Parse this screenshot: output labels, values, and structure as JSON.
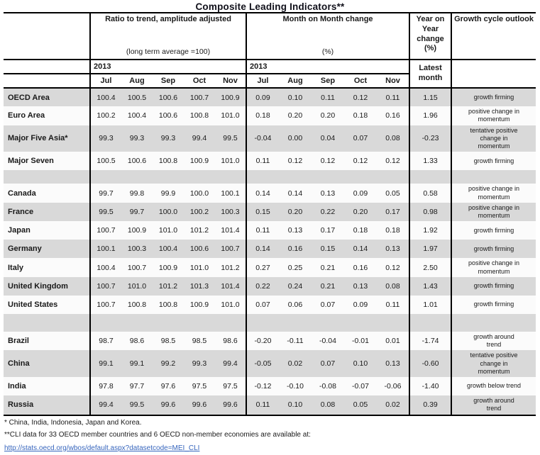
{
  "title": "Composite Leading Indicators**",
  "table": {
    "header": {
      "ratio_title": "Ratio to trend, amplitude adjusted",
      "ratio_subtitle": "(long term average =100)",
      "mom_title": "Month on Month change",
      "mom_subtitle": "(%)",
      "yoy_title": "Year on Year change (%)",
      "outlook_title": "Growth cycle outlook",
      "year_ratio": "2013",
      "year_mom": "2013",
      "latest_label": "Latest month"
    },
    "months": [
      "Jul",
      "Aug",
      "Sep",
      "Oct",
      "Nov"
    ],
    "rows": [
      {
        "label": "OECD Area",
        "ratio": [
          "100.4",
          "100.5",
          "100.6",
          "100.7",
          "100.9"
        ],
        "mom": [
          "0.09",
          "0.10",
          "0.11",
          "0.12",
          "0.11"
        ],
        "yoy": "1.15",
        "outlook": "growth firming"
      },
      {
        "label": "Euro Area",
        "ratio": [
          "100.2",
          "100.4",
          "100.6",
          "100.8",
          "101.0"
        ],
        "mom": [
          "0.18",
          "0.20",
          "0.20",
          "0.18",
          "0.16"
        ],
        "yoy": "1.96",
        "outlook": "positive change in momentum"
      },
      {
        "label": "Major Five Asia*",
        "ratio": [
          "99.3",
          "99.3",
          "99.3",
          "99.4",
          "99.5"
        ],
        "mom": [
          "-0.04",
          "0.00",
          "0.04",
          "0.07",
          "0.08"
        ],
        "yoy": "-0.23",
        "outlook": "tentative positive change in momentum"
      },
      {
        "label": "Major Seven",
        "ratio": [
          "100.5",
          "100.6",
          "100.8",
          "100.9",
          "101.0"
        ],
        "mom": [
          "0.11",
          "0.12",
          "0.12",
          "0.12",
          "0.12"
        ],
        "yoy": "1.33",
        "outlook": "growth firming"
      },
      {
        "type": "spacer"
      },
      {
        "label": "Canada",
        "ratio": [
          "99.7",
          "99.8",
          "99.9",
          "100.0",
          "100.1"
        ],
        "mom": [
          "0.14",
          "0.14",
          "0.13",
          "0.09",
          "0.05"
        ],
        "yoy": "0.58",
        "outlook": "positive change in momentum"
      },
      {
        "label": "France",
        "ratio": [
          "99.5",
          "99.7",
          "100.0",
          "100.2",
          "100.3"
        ],
        "mom": [
          "0.15",
          "0.20",
          "0.22",
          "0.20",
          "0.17"
        ],
        "yoy": "0.98",
        "outlook": "positive change in momentum"
      },
      {
        "label": "Japan",
        "ratio": [
          "100.7",
          "100.9",
          "101.0",
          "101.2",
          "101.4"
        ],
        "mom": [
          "0.11",
          "0.13",
          "0.17",
          "0.18",
          "0.18"
        ],
        "yoy": "1.92",
        "outlook": "growth firming"
      },
      {
        "label": "Germany",
        "ratio": [
          "100.1",
          "100.3",
          "100.4",
          "100.6",
          "100.7"
        ],
        "mom": [
          "0.14",
          "0.16",
          "0.15",
          "0.14",
          "0.13"
        ],
        "yoy": "1.97",
        "outlook": "growth firming"
      },
      {
        "label": "Italy",
        "ratio": [
          "100.4",
          "100.7",
          "100.9",
          "101.0",
          "101.2"
        ],
        "mom": [
          "0.27",
          "0.25",
          "0.21",
          "0.16",
          "0.12"
        ],
        "yoy": "2.50",
        "outlook": "positive change in momentum"
      },
      {
        "label": "United Kingdom",
        "ratio": [
          "100.7",
          "101.0",
          "101.2",
          "101.3",
          "101.4"
        ],
        "mom": [
          "0.22",
          "0.24",
          "0.21",
          "0.13",
          "0.08"
        ],
        "yoy": "1.43",
        "outlook": "growth firming"
      },
      {
        "label": "United States",
        "ratio": [
          "100.7",
          "100.8",
          "100.8",
          "100.9",
          "101.0"
        ],
        "mom": [
          "0.07",
          "0.06",
          "0.07",
          "0.09",
          "0.11"
        ],
        "yoy": "1.01",
        "outlook": "growth firming"
      },
      {
        "type": "spacer"
      },
      {
        "label": "Brazil",
        "ratio": [
          "98.7",
          "98.6",
          "98.5",
          "98.5",
          "98.6"
        ],
        "mom": [
          "-0.20",
          "-0.11",
          "-0.04",
          "-0.01",
          "0.01"
        ],
        "yoy": "-1.74",
        "outlook": "growth around trend"
      },
      {
        "label": "China",
        "ratio": [
          "99.1",
          "99.1",
          "99.2",
          "99.3",
          "99.4"
        ],
        "mom": [
          "-0.05",
          "0.02",
          "0.07",
          "0.10",
          "0.13"
        ],
        "yoy": "-0.60",
        "outlook": "tentative positive change in momentum"
      },
      {
        "label": "India",
        "ratio": [
          "97.8",
          "97.7",
          "97.6",
          "97.5",
          "97.5"
        ],
        "mom": [
          "-0.12",
          "-0.10",
          "-0.08",
          "-0.07",
          "-0.06"
        ],
        "yoy": "-1.40",
        "outlook": "growth below trend"
      },
      {
        "label": "Russia",
        "ratio": [
          "99.4",
          "99.5",
          "99.6",
          "99.6",
          "99.6"
        ],
        "mom": [
          "0.11",
          "0.10",
          "0.08",
          "0.05",
          "0.02"
        ],
        "yoy": "0.39",
        "outlook": "growth around trend"
      }
    ]
  },
  "footnotes": {
    "asia": "*  China, India, Indonesia, Japan and Korea.",
    "cli": "**CLI data for 33 OECD member countries and 6 OECD non-member economies are available at:",
    "link": "http://stats.oecd.org/wbos/default.aspx?datasetcode=MEI_CLI"
  },
  "colors": {
    "row_shading": "#d9d9d9",
    "link": "#3665bd",
    "border": "#000000",
    "text": "#1a1a1a"
  }
}
